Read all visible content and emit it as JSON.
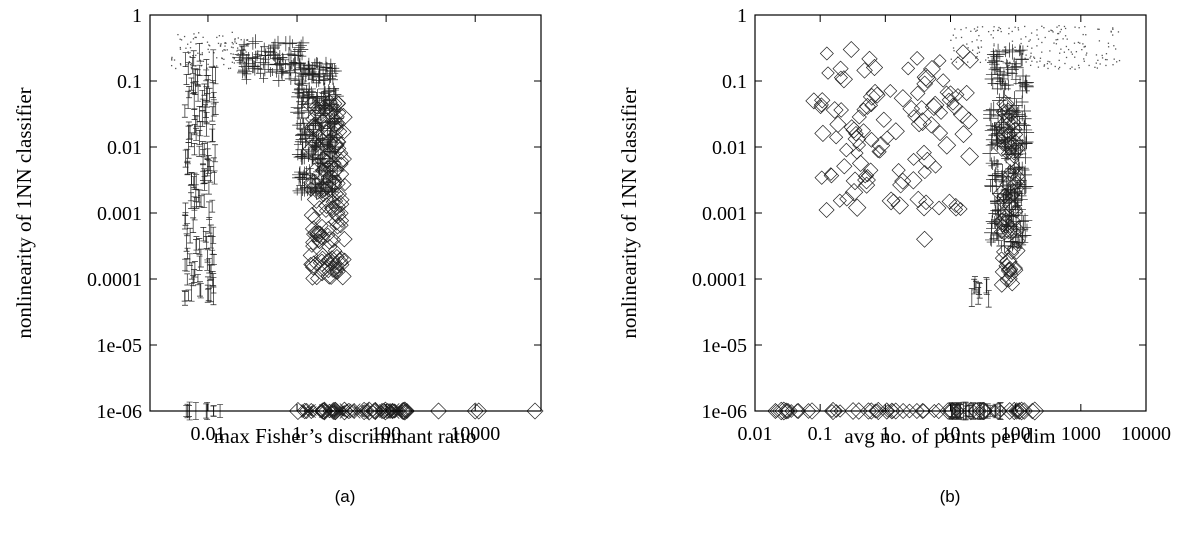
{
  "chart_data": [
    {
      "type": "scatter",
      "panel_label": "(a)",
      "xlabel": "max Fisher’s discriminant ratio",
      "ylabel": "nonlinearity of 1NN classifier",
      "x_scale": "log",
      "y_scale": "log",
      "xlim": [
        0.0005,
        300000
      ],
      "ylim": [
        1e-06,
        1
      ],
      "x_ticks": [
        {
          "value": 0.01,
          "label": "0.01"
        },
        {
          "value": 1,
          "label": "1"
        },
        {
          "value": 100,
          "label": "100"
        },
        {
          "value": 10000,
          "label": "10000"
        }
      ],
      "y_ticks": [
        {
          "value": 1,
          "label": "1"
        },
        {
          "value": 0.1,
          "label": "0.1"
        },
        {
          "value": 0.01,
          "label": "0.01"
        },
        {
          "value": 0.001,
          "label": "0.001"
        },
        {
          "value": 0.0001,
          "label": "0.0001"
        },
        {
          "value": 1e-05,
          "label": "1e-05"
        },
        {
          "value": 1e-06,
          "label": "1e-06"
        }
      ],
      "grid": false,
      "marker_styles": [
        "tiny-dot",
        "vertical-bar",
        "plus",
        "cross",
        "diamond"
      ],
      "clusters": [
        {
          "marker": "tiny-dot",
          "x": [
            0.0015,
            0.08
          ],
          "y": [
            0.15,
            0.55
          ],
          "count": 120
        },
        {
          "marker": "vertical-bar",
          "x": [
            0.003,
            0.015
          ],
          "y": [
            5e-05,
            0.3
          ],
          "count": 150
        },
        {
          "marker": "plus",
          "x": [
            0.05,
            1.5
          ],
          "y": [
            0.1,
            0.4
          ],
          "count": 90
        },
        {
          "marker": "plus",
          "x": [
            1,
            8
          ],
          "y": [
            0.002,
            0.2
          ],
          "count": 260
        },
        {
          "marker": "diamond",
          "x": [
            2,
            12
          ],
          "y": [
            0.0001,
            0.05
          ],
          "count": 150
        },
        {
          "marker": "vertical-bar",
          "x": [
            0.003,
            0.02
          ],
          "y": [
            1e-06,
            1e-06
          ],
          "count": 10
        },
        {
          "marker": "diamond",
          "x": [
            1,
            300
          ],
          "y": [
            1e-06,
            1e-06
          ],
          "count": 40
        },
        {
          "marker": "cross",
          "x": [
            1,
            300
          ],
          "y": [
            1e-06,
            1e-06
          ],
          "count": 40
        }
      ],
      "points": [
        {
          "x": 10000,
          "y": 1e-06,
          "marker": "diamond"
        },
        {
          "x": 12000,
          "y": 1e-06,
          "marker": "diamond"
        },
        {
          "x": 1500,
          "y": 1e-06,
          "marker": "diamond"
        },
        {
          "x": 220000,
          "y": 1e-06,
          "marker": "diamond"
        }
      ]
    },
    {
      "type": "scatter",
      "panel_label": "(b)",
      "xlabel": "avg no. of points per dim",
      "ylabel": "nonlinearity of 1NN classifier",
      "x_scale": "log",
      "y_scale": "log",
      "xlim": [
        0.01,
        10000
      ],
      "ylim": [
        1e-06,
        1
      ],
      "x_ticks": [
        {
          "value": 0.01,
          "label": "0.01"
        },
        {
          "value": 0.1,
          "label": "0.1"
        },
        {
          "value": 1,
          "label": "1"
        },
        {
          "value": 10,
          "label": "10"
        },
        {
          "value": 100,
          "label": "100"
        },
        {
          "value": 1000,
          "label": "1000"
        },
        {
          "value": 10000,
          "label": "10000"
        }
      ],
      "y_ticks": [
        {
          "value": 1,
          "label": "1"
        },
        {
          "value": 0.1,
          "label": "0.1"
        },
        {
          "value": 0.01,
          "label": "0.01"
        },
        {
          "value": 0.001,
          "label": "0.001"
        },
        {
          "value": 0.0001,
          "label": "0.0001"
        },
        {
          "value": 1e-05,
          "label": "1e-05"
        },
        {
          "value": 1e-06,
          "label": "1e-06"
        }
      ],
      "grid": false,
      "marker_styles": [
        "tiny-dot",
        "vertical-bar",
        "plus",
        "cross",
        "diamond"
      ],
      "clusters": [
        {
          "marker": "tiny-dot",
          "x": [
            10,
            4000
          ],
          "y": [
            0.15,
            0.7
          ],
          "count": 200
        },
        {
          "marker": "plus",
          "x": [
            40,
            150
          ],
          "y": [
            0.0003,
            0.3
          ],
          "count": 260
        },
        {
          "marker": "diamond",
          "x": [
            0.1,
            20
          ],
          "y": [
            0.001,
            0.3
          ],
          "count": 110
        },
        {
          "marker": "diamond",
          "x": [
            60,
            110
          ],
          "y": [
            8e-05,
            0.05
          ],
          "count": 80
        },
        {
          "marker": "vertical-bar",
          "x": [
            20,
            40
          ],
          "y": [
            5e-05,
            0.0001
          ],
          "count": 10
        },
        {
          "marker": "diamond",
          "x": [
            0.02,
            200
          ],
          "y": [
            1e-06,
            1e-06
          ],
          "count": 60
        },
        {
          "marker": "vertical-bar",
          "x": [
            10,
            60
          ],
          "y": [
            1e-06,
            1e-06
          ],
          "count": 30
        }
      ],
      "points": [
        {
          "x": 0.03,
          "y": 1e-06,
          "marker": "diamond"
        },
        {
          "x": 0.3,
          "y": 0.3,
          "marker": "diamond"
        },
        {
          "x": 0.08,
          "y": 0.05,
          "marker": "diamond"
        },
        {
          "x": 4,
          "y": 0.0004,
          "marker": "diamond"
        }
      ]
    }
  ]
}
